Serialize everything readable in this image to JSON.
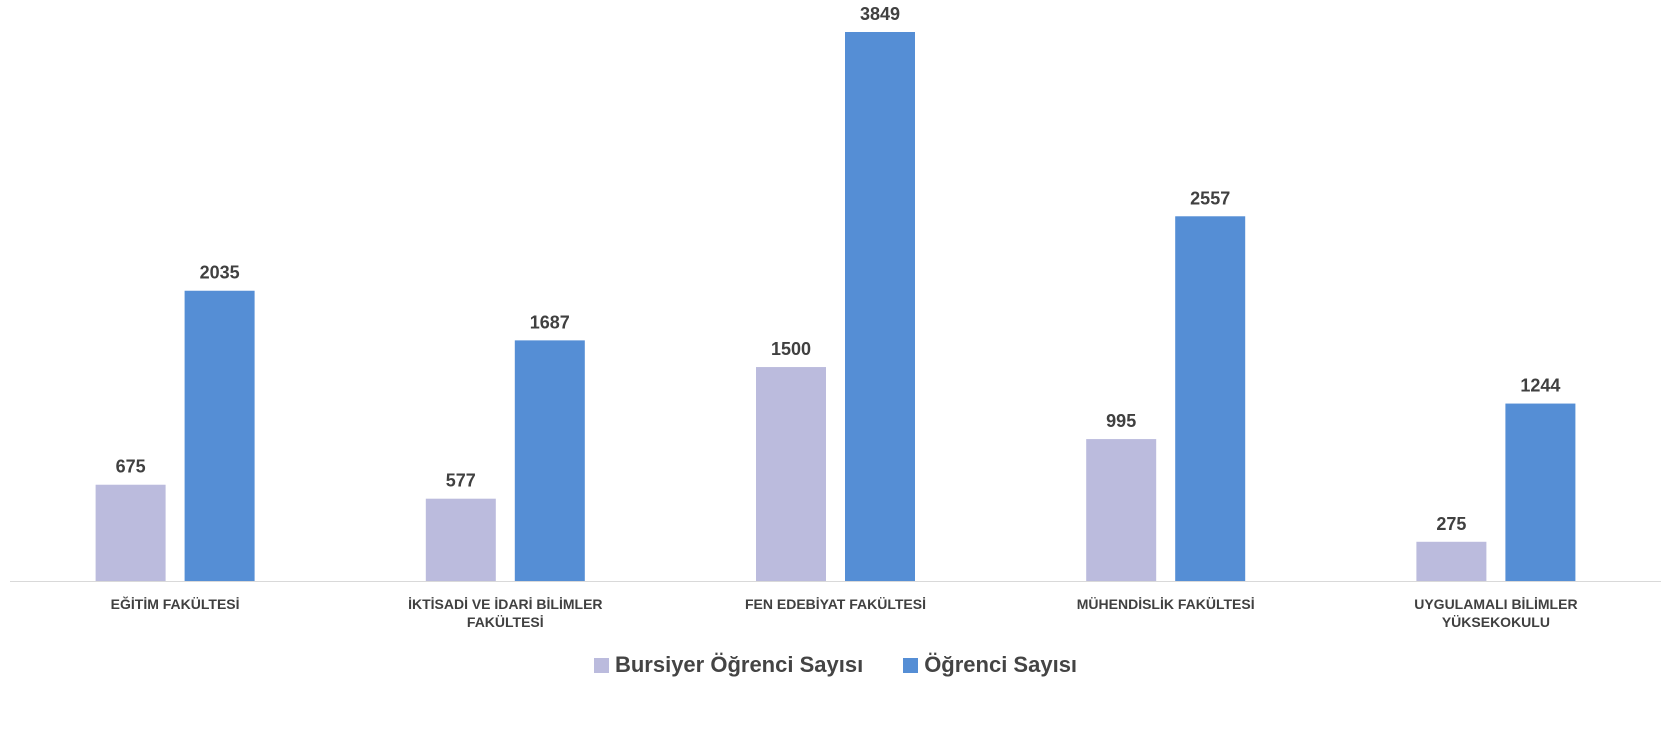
{
  "chart_data": {
    "type": "bar",
    "title": "",
    "xlabel": "",
    "ylabel": "",
    "ylim": [
      0,
      4000
    ],
    "grid": false,
    "legend_position": "bottom",
    "categories": [
      [
        "EĞİTİM FAKÜLTESİ"
      ],
      [
        "İKTİSADİ VE İDARİ BİLİMLER",
        "FAKÜLTESİ"
      ],
      [
        "FEN EDEBİYAT FAKÜLTESİ"
      ],
      [
        "MÜHENDİSLİK FAKÜLTESİ"
      ],
      [
        "UYGULAMALI BİLİMLER",
        "YÜKSEKOKULU"
      ]
    ],
    "series": [
      {
        "name": "Bursiyer Öğrenci Sayısı",
        "color": "#BBBBDD",
        "values": [
          675,
          577,
          1500,
          995,
          275
        ]
      },
      {
        "name": "Öğrenci Sayısı",
        "color": "#558ED5",
        "values": [
          2035,
          1687,
          3849,
          2557,
          1244
        ]
      }
    ]
  }
}
